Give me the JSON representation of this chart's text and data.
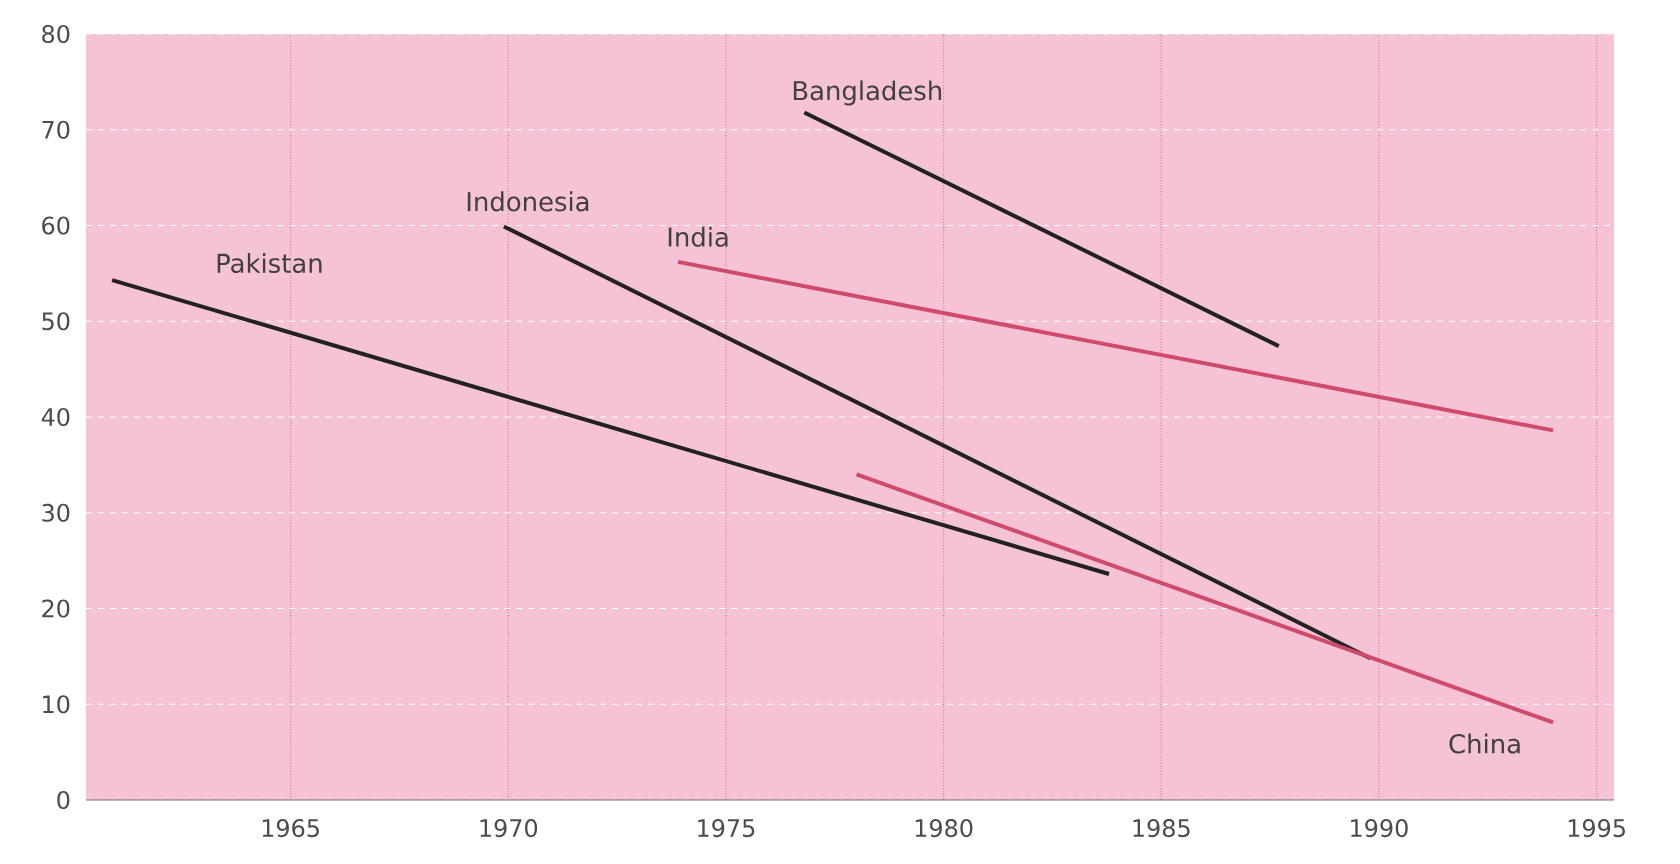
{
  "chart_data": {
    "type": "line",
    "xlim": [
      1960.3,
      1995.4
    ],
    "ylim": [
      0,
      80
    ],
    "xticks": [
      1965,
      1970,
      1975,
      1980,
      1985,
      1990,
      1995
    ],
    "yticks": [
      0,
      10,
      20,
      30,
      40,
      50,
      60,
      70,
      80
    ],
    "grid": true,
    "marker": "none",
    "line_style": "solid",
    "series": [
      {
        "name": "Pakistan",
        "color": "#222222",
        "x": [
          1960.9,
          1983.8
        ],
        "values": [
          54.3,
          23.6
        ]
      },
      {
        "name": "Indonesia",
        "color": "#222222",
        "x": [
          1969.9,
          1989.8
        ],
        "values": [
          59.9,
          14.8
        ]
      },
      {
        "name": "Bangladesh",
        "color": "#222222",
        "x": [
          1976.8,
          1987.7
        ],
        "values": [
          71.8,
          47.4
        ]
      },
      {
        "name": "India",
        "color": "#d04a6a",
        "x": [
          1973.9,
          1994.0
        ],
        "values": [
          56.2,
          38.6
        ]
      },
      {
        "name": "China",
        "color": "#d04a6a",
        "x": [
          1978.0,
          1994.0
        ],
        "values": [
          34.0,
          8.1
        ]
      }
    ]
  }
}
